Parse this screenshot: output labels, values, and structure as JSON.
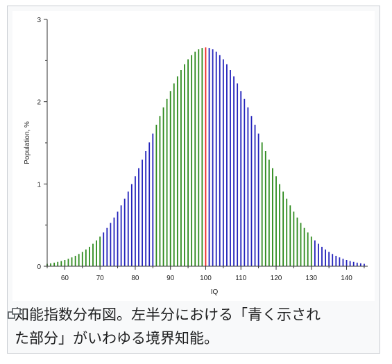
{
  "chart_data": {
    "type": "bar",
    "xlabel": "IQ",
    "ylabel": "Population, %",
    "xlim": [
      55,
      146
    ],
    "ylim": [
      0,
      3
    ],
    "x_ticks": [
      60,
      70,
      80,
      90,
      100,
      110,
      120,
      130,
      140
    ],
    "y_ticks": [
      0,
      1,
      2,
      3
    ],
    "mean": 100,
    "sd": 15,
    "x_start": 55,
    "x_end": 145,
    "colors": {
      "green": "#2e8b1e",
      "blue": "#2222bb",
      "red": "#ee2222"
    },
    "color_bands": [
      {
        "from": 55,
        "to": 70,
        "color": "green"
      },
      {
        "from": 71,
        "to": 85,
        "color": "blue"
      },
      {
        "from": 86,
        "to": 99,
        "color": "green"
      },
      {
        "from": 100,
        "to": 100,
        "color": "red"
      },
      {
        "from": 101,
        "to": 115,
        "color": "blue"
      },
      {
        "from": 116,
        "to": 130,
        "color": "green"
      },
      {
        "from": 131,
        "to": 145,
        "color": "blue"
      }
    ]
  },
  "caption": {
    "text": "知能指数分布図。左半分における「青く示された部分」がいわゆる境界知能。"
  },
  "icons": {
    "enlarge": "enlarge-icon"
  }
}
